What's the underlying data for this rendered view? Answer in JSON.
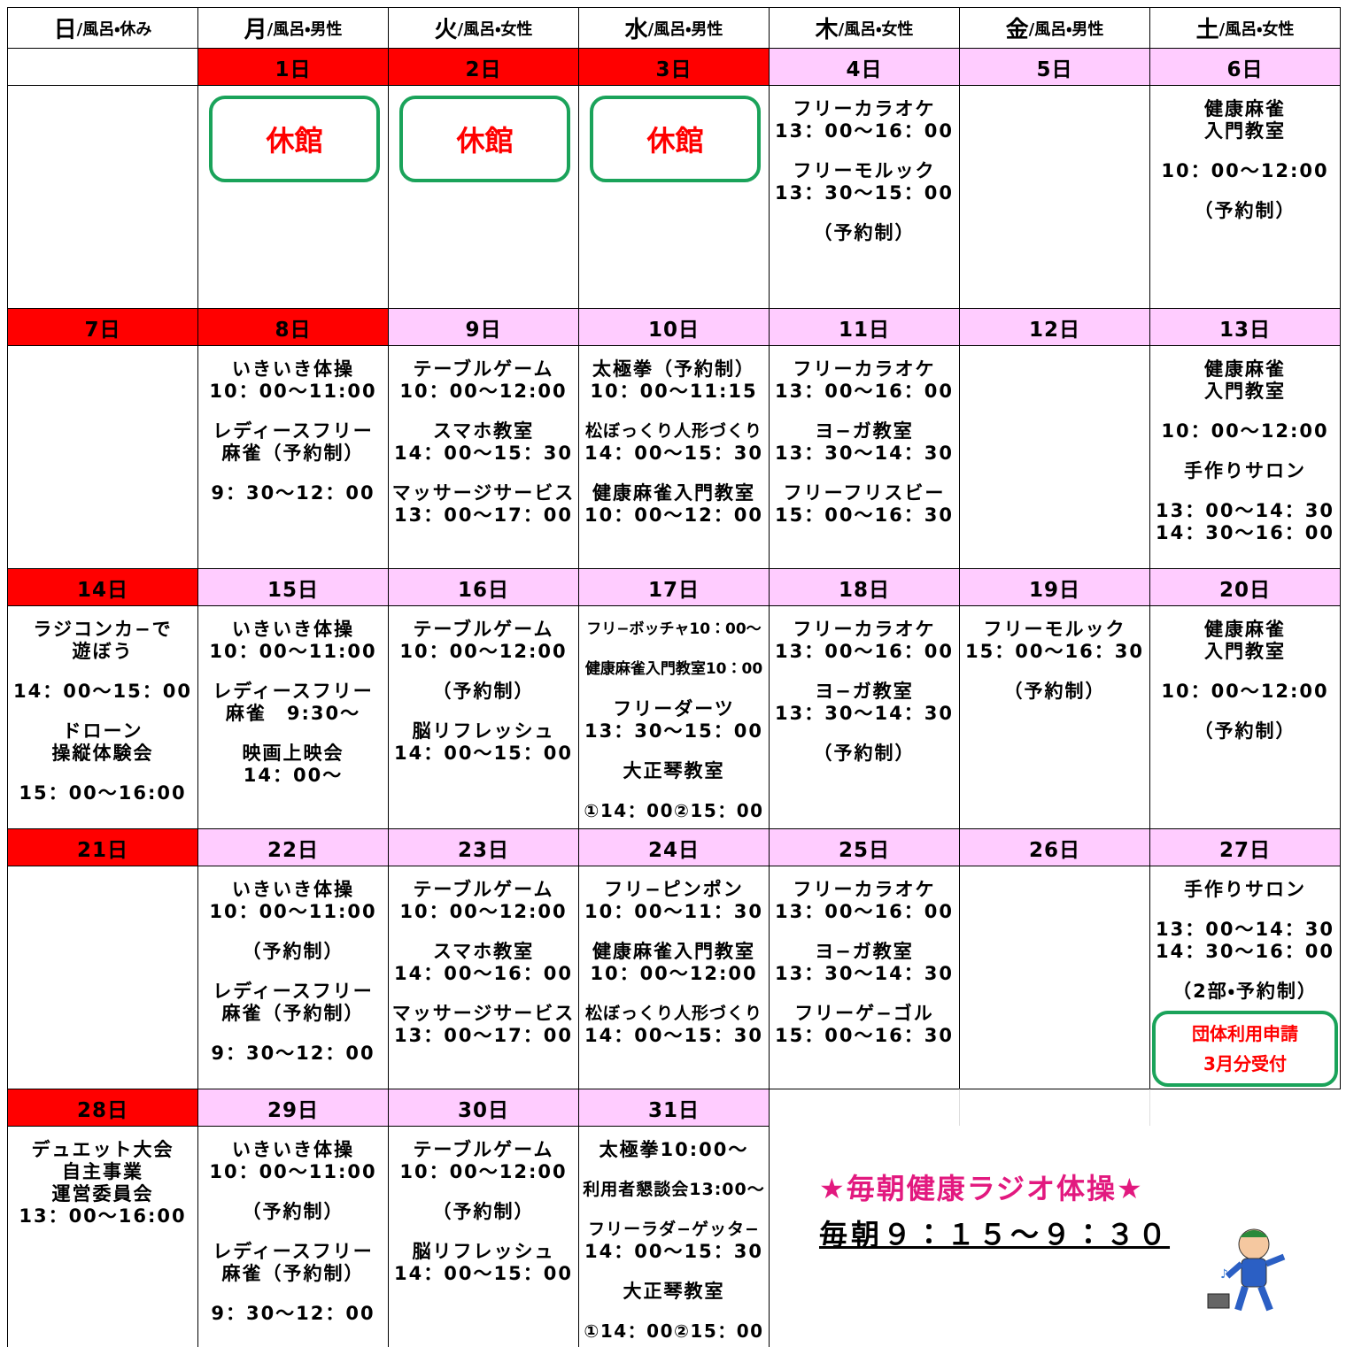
{
  "header": [
    {
      "day": "日",
      "note": "/風呂・休み"
    },
    {
      "day": "月",
      "note": "/風呂・男性"
    },
    {
      "day": "火",
      "note": "/風呂・女性"
    },
    {
      "day": "水",
      "note": "/風呂・男性"
    },
    {
      "day": "木",
      "note": "/風呂・女性"
    },
    {
      "day": "金",
      "note": "/風呂・男性"
    },
    {
      "day": "土",
      "note": "/風呂・女性"
    }
  ],
  "weeks": [
    {
      "cells": [
        {
          "date": null
        },
        {
          "date": "1日",
          "color": "#ff0000",
          "badge": [
            "休館"
          ]
        },
        {
          "date": "2日",
          "color": "#ff0000",
          "badge": [
            "休館"
          ]
        },
        {
          "date": "3日",
          "color": "#ff0000",
          "badge": [
            "休館"
          ]
        },
        {
          "date": "4日",
          "color": "#ffccff",
          "blocks": [
            [
              "フリーカラオケ",
              "13：00～16：00"
            ],
            [
              "フリーモルック",
              "13：30～15：00"
            ],
            [
              "（予約制）"
            ]
          ]
        },
        {
          "date": "5日",
          "color": "#ffccff"
        },
        {
          "date": "6日",
          "color": "#ffccff",
          "blocks": [
            [
              "健康麻雀",
              "入門教室"
            ],
            [
              "10：00～12:00"
            ],
            [
              "（予約制）"
            ]
          ]
        }
      ]
    },
    {
      "cells": [
        {
          "date": "7日",
          "color": "#ff0000"
        },
        {
          "date": "8日",
          "color": "#ff0000",
          "blocks": [
            [
              "いきいき体操",
              "10：00～11:00"
            ],
            [
              "レディースフリー",
              "麻雀（予約制）"
            ],
            [
              "9：30～12：00"
            ]
          ]
        },
        {
          "date": "9日",
          "color": "#ffccff",
          "blocks": [
            [
              "テーブルゲーム",
              "10：00～12:00"
            ],
            [
              "スマホ教室",
              "14：00～15：30"
            ],
            [
              "マッサージサービス",
              "13：00～17：00"
            ]
          ]
        },
        {
          "date": "10日",
          "color": "#ffccff",
          "blocks": [
            [
              "太極拳（予約制）",
              "10：00～11:15"
            ],
            [
              "松ぼっくり人形づくり",
              "14：00～15：30"
            ],
            [
              "健康麻雀入門教室",
              "10：00～12：00"
            ]
          ]
        },
        {
          "date": "11日",
          "color": "#ffccff",
          "blocks": [
            [
              "フリーカラオケ",
              "13：00～16：00"
            ],
            [
              "ヨ−ガ教室",
              "13：30～14：30"
            ],
            [
              "フリーフリスビー",
              "15：00～16：30"
            ]
          ]
        },
        {
          "date": "12日",
          "color": "#ffccff"
        },
        {
          "date": "13日",
          "color": "#ffccff",
          "blocks": [
            [
              "健康麻雀",
              "入門教室"
            ],
            [
              "10：00～12:00"
            ],
            [
              "手作りサロン"
            ],
            [
              "13：00～14：30",
              "14：30～16：00"
            ]
          ]
        }
      ]
    },
    {
      "cells": [
        {
          "date": "14日",
          "color": "#ff0000",
          "blocks": [
            [
              "ラジコンカ−で",
              "遊ぼう"
            ],
            [
              "14：00～15：00"
            ],
            [
              "ドローン",
              "操縦体験会"
            ],
            [
              "15：00～16:00"
            ]
          ]
        },
        {
          "date": "15日",
          "color": "#ffccff",
          "blocks": [
            [
              "いきいき体操",
              "10：00～11:00"
            ],
            [
              "レディースフリー",
              "麻雀　9:30～"
            ],
            [
              "映画上映会",
              "14：00～"
            ]
          ]
        },
        {
          "date": "16日",
          "color": "#ffccff",
          "blocks": [
            [
              "テーブルゲーム",
              "10：00～12:00"
            ],
            [
              "（予約制）"
            ],
            [
              "脳リフレッシュ",
              "14：00～15：00"
            ]
          ]
        },
        {
          "date": "17日",
          "color": "#ffccff",
          "blocks": [
            [
              "フリ−ボッチャ10：00～"
            ],
            [
              "健康麻雀入門教室10：00"
            ],
            [
              "フリーダーツ",
              "13：30～15：00"
            ],
            [
              "大正琴教室"
            ],
            [
              "①14：00②15：00"
            ]
          ]
        },
        {
          "date": "18日",
          "color": "#ffccff",
          "blocks": [
            [
              "フリーカラオケ",
              "13：00～16：00"
            ],
            [
              "ヨ−ガ教室",
              "13：30～14：30"
            ],
            [
              "（予約制）"
            ]
          ]
        },
        {
          "date": "19日",
          "color": "#ffccff",
          "blocks": [
            [
              "フリーモルック",
              "15：00～16：30"
            ],
            [
              "（予約制）"
            ]
          ]
        },
        {
          "date": "20日",
          "color": "#ffccff",
          "blocks": [
            [
              "健康麻雀",
              "入門教室"
            ],
            [
              "10：00～12:00"
            ],
            [
              "（予約制）"
            ]
          ]
        }
      ]
    },
    {
      "cells": [
        {
          "date": "21日",
          "color": "#ff0000"
        },
        {
          "date": "22日",
          "color": "#ffccff",
          "blocks": [
            [
              "いきいき体操",
              "10：00～11:00"
            ],
            [
              "（予約制）"
            ],
            [
              "レディースフリー",
              "麻雀（予約制）"
            ],
            [
              "9：30～12：00"
            ]
          ]
        },
        {
          "date": "23日",
          "color": "#ffccff",
          "blocks": [
            [
              "テーブルゲーム",
              "10：00～12:00"
            ],
            [
              "スマホ教室",
              "14：00～16：00"
            ],
            [
              "マッサージサービス",
              "13：00～17：00"
            ]
          ]
        },
        {
          "date": "24日",
          "color": "#ffccff",
          "blocks": [
            [
              "フリ−ピンポン",
              "10：00～11：30"
            ],
            [
              "健康麻雀入門教室",
              "10：00～12:00"
            ],
            [
              "松ぼっくり人形づくり",
              "14：00～15：30"
            ]
          ]
        },
        {
          "date": "25日",
          "color": "#ffccff",
          "blocks": [
            [
              "フリーカラオケ",
              "13：00～16：00"
            ],
            [
              "ヨ−ガ教室",
              "13：30～14：30"
            ],
            [
              "フリーゲ−ゴル",
              "15：00～16：30"
            ]
          ]
        },
        {
          "date": "26日",
          "color": "#ffccff"
        },
        {
          "date": "27日",
          "color": "#ffccff",
          "blocks": [
            [
              "手作りサロン"
            ],
            [
              "13：00～14：30",
              "14：30～16：00"
            ],
            [
              "（2部・予約制）"
            ]
          ],
          "badge": [
            "団体利用申請",
            "3月分受付"
          ]
        }
      ]
    },
    {
      "cells": [
        {
          "date": "28日",
          "color": "#ff0000",
          "blocks": [
            [
              "デュエット大会",
              "自主事業",
              "運営委員会",
              "13：00～16:00"
            ]
          ]
        },
        {
          "date": "29日",
          "color": "#ffccff",
          "blocks": [
            [
              "いきいき体操",
              "10：00～11:00"
            ],
            [
              "（予約制）"
            ],
            [
              "レディースフリー",
              "麻雀（予約制）"
            ],
            [
              "9：30～12：00"
            ]
          ]
        },
        {
          "date": "30日",
          "color": "#ffccff",
          "blocks": [
            [
              "テーブルゲーム",
              "10：00～12:00"
            ],
            [
              "（予約制）"
            ],
            [
              "脳リフレッシュ",
              "14：00～15：00"
            ]
          ]
        },
        {
          "date": "31日",
          "color": "#ffccff",
          "blocks": [
            [
              "太極拳10:00～"
            ],
            [
              "利用者懇談会13:00～"
            ],
            [
              "フリーラダ−ゲッタ−",
              "14：00～15：30"
            ],
            [
              "大正琴教室"
            ],
            [
              "①14：00②15：00"
            ]
          ]
        }
      ]
    }
  ],
  "notice": {
    "title": "★毎朝健康ラジオ体操★",
    "time": "毎朝９：１５～９：３０"
  }
}
